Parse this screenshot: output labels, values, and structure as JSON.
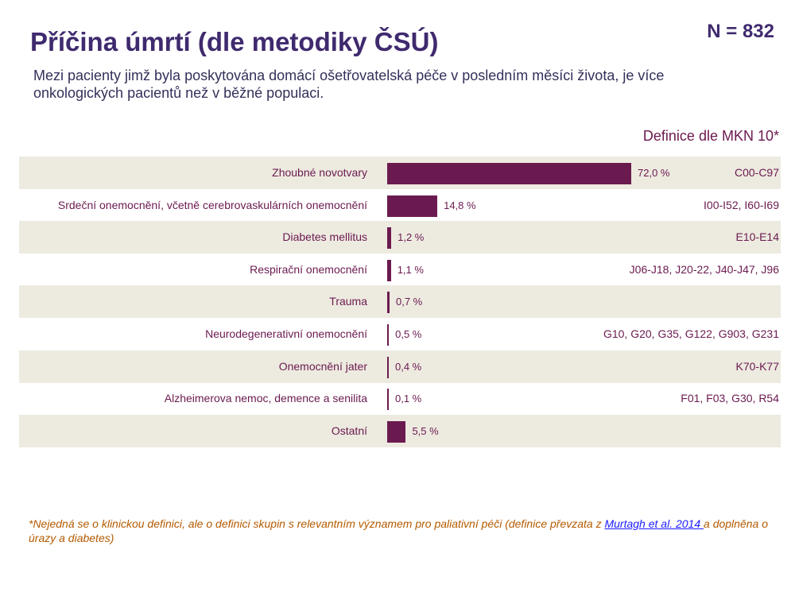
{
  "header": {
    "title": "Příčina úmrtí (dle metodiky ČSÚ)",
    "n_label": "N = 832",
    "subtitle": "Mezi pacienty jimž byla poskytována domácí ošetřovatelská péče v posledním měsíci života, je více onkologických pacientů než v běžné populaci.",
    "definition_header": "Definice dle MKN 10*"
  },
  "chart_data": {
    "type": "bar",
    "orientation": "horizontal",
    "title": "Příčina úmrtí (dle metodiky ČSÚ)",
    "xlabel": "",
    "ylabel": "",
    "xlim": [
      0,
      72
    ],
    "categories": [
      "Zhoubné novotvary",
      "Srdeční onemocnění, včetně cerebrovaskulárních onemocnění",
      "Diabetes mellitus",
      "Respirační onemocnění",
      "Trauma",
      "Neurodegenerativní onemocnění",
      "Onemocnění jater",
      "Alzheimerova nemoc, demence a senilita",
      "Ostatní"
    ],
    "values": [
      72.0,
      14.8,
      1.2,
      1.1,
      0.7,
      0.5,
      0.4,
      0.1,
      5.5
    ],
    "value_labels": [
      "72,0 %",
      "14,8 %",
      "1,2 %",
      "1,1 %",
      "0,7 %",
      "0,5 %",
      "0,4 %",
      "0,1 %",
      "5,5 %"
    ],
    "codes": [
      "C00-C97",
      "I00-I52, I60-I69",
      "E10-E14",
      "J06-J18, J20-22, J40-J47, J96",
      "",
      "G10, G20, G35, G122, G903, G231",
      "K70-K77",
      "F01, F03, G30, R54",
      ""
    ],
    "bar_color": "#6b1a4f"
  },
  "footnote": {
    "text_before": "*Nejedná se o klinickou definici, ale o definici skupin s relevantním významem pro paliativní péči (definice převzata z ",
    "link": "Murtagh et al. 2014 ",
    "text_after": "a doplněna o úrazy a diabetes)"
  }
}
